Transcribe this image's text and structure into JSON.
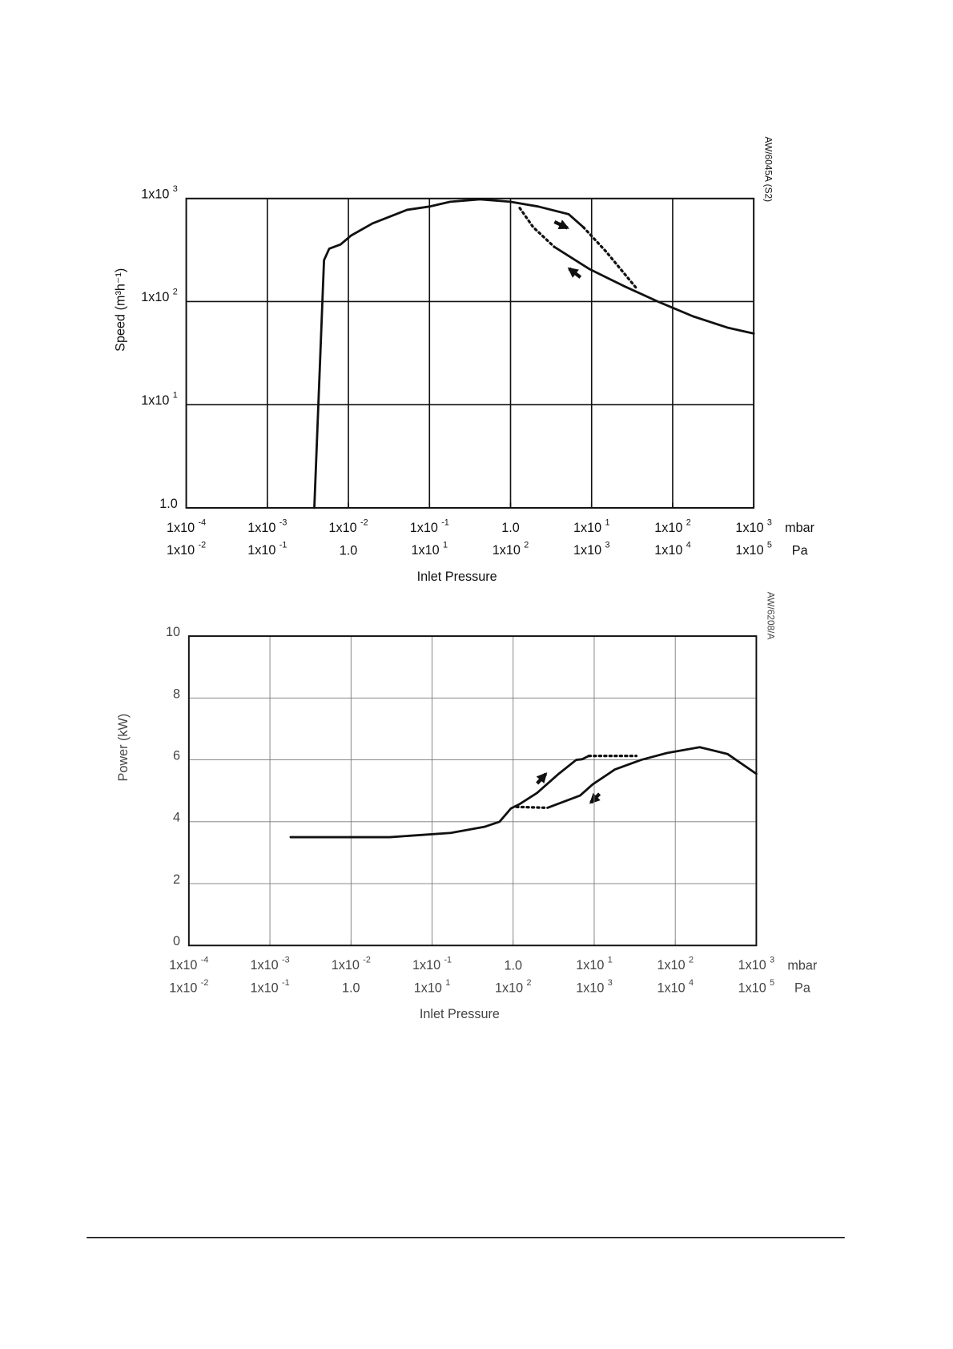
{
  "chart_data": [
    {
      "type": "line",
      "xlog": true,
      "ylog": true,
      "grid": true,
      "xlabel": "Inlet Pressure",
      "ylabel": "Speed (m³h⁻¹)",
      "annotation": "AW/6045A (S2)",
      "x_unit": "mbar",
      "x2_unit": "Pa",
      "xlim": [
        0.0001,
        1000
      ],
      "xticks": [
        {
          "value": 0.0001,
          "label": "1x10 -4"
        },
        {
          "value": 0.001,
          "label": "1x10 -3"
        },
        {
          "value": 0.01,
          "label": "1x10 -2"
        },
        {
          "value": 0.1,
          "label": "1x10 -1"
        },
        {
          "value": 1,
          "label": "1.0"
        },
        {
          "value": 10,
          "label": "1x10 1"
        },
        {
          "value": 100,
          "label": "1x10 2"
        },
        {
          "value": 1000,
          "label": "1x10 3"
        }
      ],
      "x2lim": [
        0.01,
        100000
      ],
      "x2ticks": [
        {
          "value": 0.01,
          "label": "1x10 -2"
        },
        {
          "value": 0.1,
          "label": "1x10 -1"
        },
        {
          "value": 1,
          "label": "1.0"
        },
        {
          "value": 10,
          "label": "1x10 1"
        },
        {
          "value": 100,
          "label": "1x10 2"
        },
        {
          "value": 1000,
          "label": "1x10 3"
        },
        {
          "value": 10000,
          "label": "1x10 4"
        },
        {
          "value": 100000,
          "label": "1x10 5"
        }
      ],
      "ylim": [
        1,
        1000
      ],
      "yticks": [
        {
          "value": 1,
          "label": "1.0"
        },
        {
          "value": 10,
          "label": "1x10 1"
        },
        {
          "value": 100,
          "label": "1x10 2"
        },
        {
          "value": 1000,
          "label": "1x10 3"
        }
      ],
      "series": [
        {
          "color": "#111111",
          "dashed": false,
          "x": [
            0.0038,
            0.005,
            0.0058,
            0.008,
            0.0107,
            0.0198,
            0.053,
            0.1,
            0.18,
            0.42,
            1.0,
            2.2,
            5.2,
            7.9
          ],
          "values": [
            1,
            252,
            326,
            358,
            435,
            573,
            776,
            835,
            930,
            980,
            930,
            835,
            705,
            527
          ]
        },
        {
          "color": "#111111",
          "dashed": false,
          "x": [
            3.47,
            9.3,
            24.8,
            66,
            178,
            475,
            1000
          ],
          "values": [
            339,
            208,
            142,
            100,
            72,
            56,
            49
          ]
        },
        {
          "color": "#111111",
          "dashed": true,
          "x": [
            1.3,
            1.9,
            3.47
          ],
          "values": [
            809,
            527,
            339
          ]
        },
        {
          "color": "#111111",
          "dashed": true,
          "x": [
            7.9,
            15,
            36
          ],
          "values": [
            527,
            307,
            134
          ]
        }
      ]
    },
    {
      "type": "line",
      "xlog": true,
      "ylog": false,
      "grid": true,
      "xlabel": "Inlet Pressure",
      "ylabel": "Power (kW)",
      "annotation": "AW/6208/A",
      "x_unit": "mbar",
      "x2_unit": "Pa",
      "xlim": [
        0.0001,
        1000
      ],
      "xticks": [
        {
          "value": 0.0001,
          "label": "1x10 -4"
        },
        {
          "value": 0.001,
          "label": "1x10 -3"
        },
        {
          "value": 0.01,
          "label": "1x10 -2"
        },
        {
          "value": 0.1,
          "label": "1x10 -1"
        },
        {
          "value": 1,
          "label": "1.0"
        },
        {
          "value": 10,
          "label": "1x10 1"
        },
        {
          "value": 100,
          "label": "1x10 2"
        },
        {
          "value": 1000,
          "label": "1x10 3"
        }
      ],
      "x2lim": [
        0.01,
        100000
      ],
      "x2ticks": [
        {
          "value": 0.01,
          "label": "1x10 -2"
        },
        {
          "value": 0.1,
          "label": "1x10 -1"
        },
        {
          "value": 1,
          "label": "1.0"
        },
        {
          "value": 10,
          "label": "1x10 1"
        },
        {
          "value": 100,
          "label": "1x10 2"
        },
        {
          "value": 1000,
          "label": "1x10 3"
        },
        {
          "value": 10000,
          "label": "1x10 4"
        },
        {
          "value": 100000,
          "label": "1x10 5"
        }
      ],
      "ylim": [
        0,
        10
      ],
      "yticks": [
        0,
        2,
        4,
        6,
        8,
        10
      ],
      "series": [
        {
          "color": "#111111",
          "dashed": false,
          "x": [
            0.0018,
            0.03,
            0.17,
            0.45,
            0.68,
            0.94,
            1.2,
            1.97,
            3.65,
            6.0,
            7.1,
            8.6
          ],
          "values": [
            3.5,
            3.5,
            3.64,
            3.84,
            4.0,
            4.43,
            4.57,
            4.93,
            5.55,
            6.0,
            6.02,
            6.13
          ]
        },
        {
          "color": "#111111",
          "dashed": false,
          "x": [
            2.65,
            6.7,
            9.6,
            18,
            38,
            79,
            200,
            441,
            1000
          ],
          "values": [
            4.45,
            4.85,
            5.21,
            5.69,
            6.0,
            6.22,
            6.41,
            6.19,
            5.55
          ]
        },
        {
          "color": "#111111",
          "dashed": true,
          "x": [
            8.6,
            33
          ],
          "values": [
            6.13,
            6.13
          ]
        },
        {
          "color": "#111111",
          "dashed": true,
          "x": [
            1.1,
            2.65
          ],
          "values": [
            4.48,
            4.45
          ]
        }
      ]
    }
  ]
}
